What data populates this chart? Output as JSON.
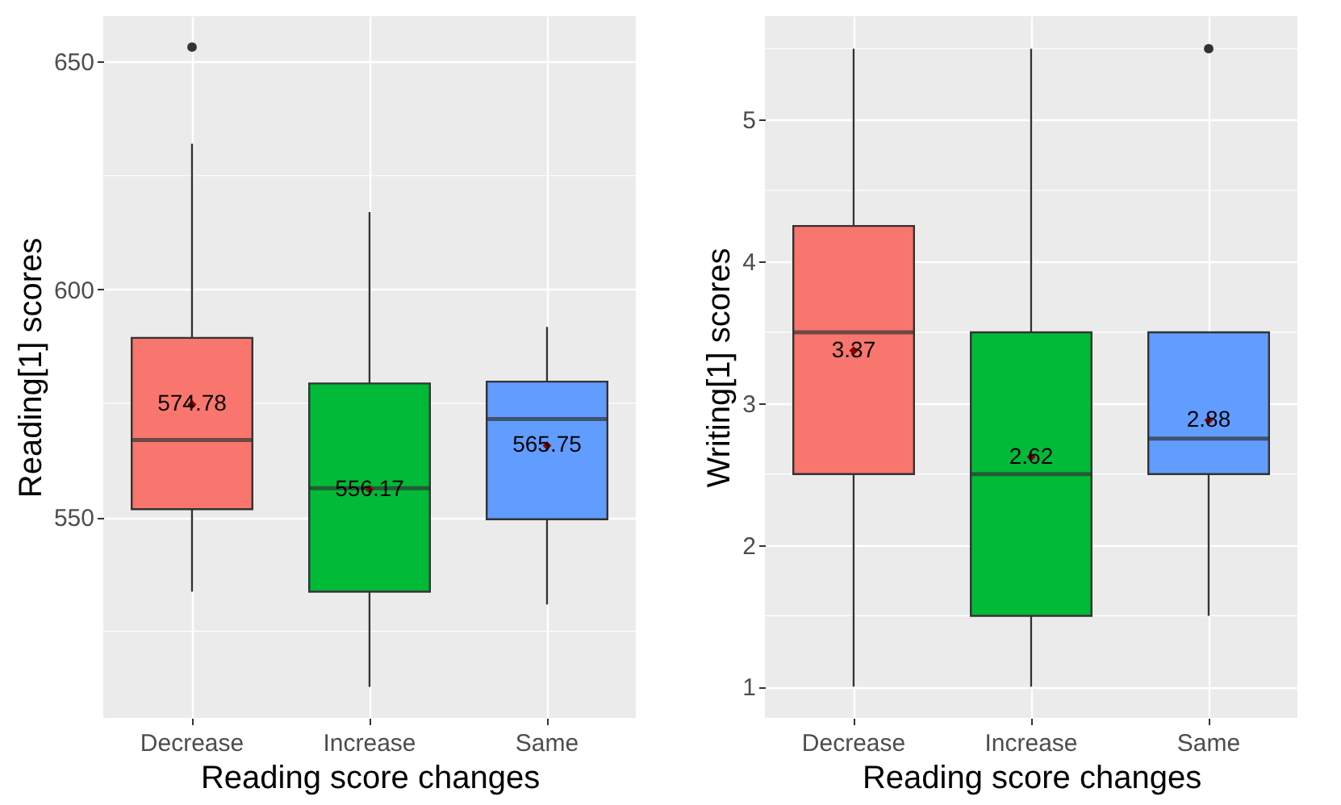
{
  "chart_data": [
    {
      "type": "box",
      "xlabel": "Reading score changes",
      "ylabel": "Reading[1] scores",
      "categories": [
        "Decrease",
        "Increase",
        "Same"
      ],
      "colors": [
        "#f8766d",
        "#00ba38",
        "#619cff"
      ],
      "boxes": [
        {
          "low": 533.7,
          "q1": 551.8,
          "median": 567,
          "q3": 589.4,
          "high": 632,
          "outliers": [
            653.2
          ]
        },
        {
          "low": 512.8,
          "q1": 533.7,
          "median": 556.4,
          "q3": 579.4,
          "high": 617
        },
        {
          "low": 530.9,
          "q1": 549.6,
          "median": 571.6,
          "q3": 579.8,
          "high": 591.8
        }
      ],
      "series": [
        {
          "type": "scatter",
          "color": "#8b0000",
          "x": [
            "Decrease",
            "Increase",
            "Same"
          ],
          "values": [
            574.78,
            556.17,
            565.75
          ]
        }
      ],
      "marker": "diamond",
      "data_labels": true,
      "ylim": [
        506,
        660
      ],
      "yticks": [
        550,
        600,
        650
      ],
      "grid": true
    },
    {
      "type": "box",
      "xlabel": "Reading score changes",
      "ylabel": "Writing[1] scores",
      "categories": [
        "Decrease",
        "Increase",
        "Same"
      ],
      "colors": [
        "#f8766d",
        "#00ba38",
        "#619cff"
      ],
      "boxes": [
        {
          "low": 1,
          "q1": 2.5,
          "median": 3.5,
          "q3": 4.25,
          "high": 5.5
        },
        {
          "low": 1,
          "q1": 1.5,
          "median": 2.5,
          "q3": 3.5,
          "high": 5.5
        },
        {
          "low": 1.5,
          "q1": 2.5,
          "median": 2.75,
          "q3": 3.5,
          "high": 3.5,
          "outliers": [
            5.5
          ]
        }
      ],
      "series": [
        {
          "type": "scatter",
          "color": "#8b0000",
          "x": [
            "Decrease",
            "Increase",
            "Same"
          ],
          "values": [
            3.37,
            2.62,
            2.88
          ]
        }
      ],
      "marker": "diamond",
      "data_labels": true,
      "ylim": [
        0.78,
        5.73
      ],
      "yticks": [
        1,
        2,
        3,
        4,
        5
      ],
      "grid": true
    }
  ]
}
